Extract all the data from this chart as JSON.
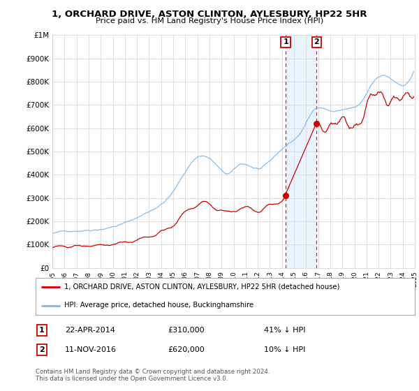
{
  "title": "1, ORCHARD DRIVE, ASTON CLINTON, AYLESBURY, HP22 5HR",
  "subtitle": "Price paid vs. HM Land Registry's House Price Index (HPI)",
  "hpi_label": "HPI: Average price, detached house, Buckinghamshire",
  "property_label": "1, ORCHARD DRIVE, ASTON CLINTON, AYLESBURY, HP22 5HR (detached house)",
  "hpi_color": "#7ab8e8",
  "property_color": "#cc0000",
  "sale1_date": "22-APR-2014",
  "sale1_price": 310000,
  "sale1_label": "41% ↓ HPI",
  "sale1_year": 2014.31,
  "sale2_date": "11-NOV-2016",
  "sale2_price": 620000,
  "sale2_label": "10% ↓ HPI",
  "sale2_year": 2016.86,
  "xmin": 1995,
  "xmax": 2025,
  "ymin": 0,
  "ymax": 1000000,
  "yticks": [
    0,
    100000,
    200000,
    300000,
    400000,
    500000,
    600000,
    700000,
    800000,
    900000,
    1000000
  ],
  "ytick_labels": [
    "£0",
    "£100K",
    "£200K",
    "£300K",
    "£400K",
    "£500K",
    "£600K",
    "£700K",
    "£800K",
    "£900K",
    "£1M"
  ],
  "footnote": "Contains HM Land Registry data © Crown copyright and database right 2024.\nThis data is licensed under the Open Government Licence v3.0.",
  "bg_color": "#ffffff",
  "grid_color": "#dddddd",
  "highlight_bg": "#ddeeff"
}
